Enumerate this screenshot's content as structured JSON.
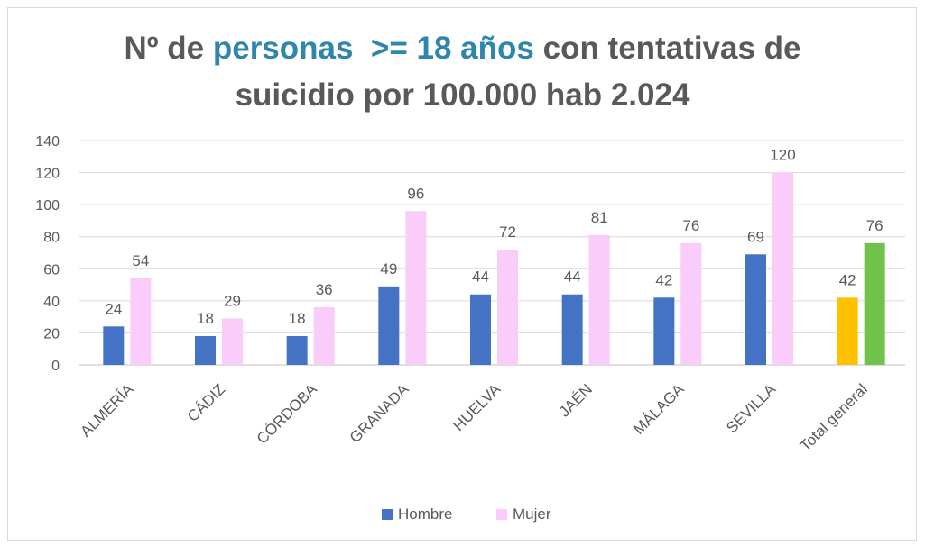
{
  "chart_data": {
    "type": "bar",
    "title": {
      "line1_part1": "Nº de ",
      "line1_highlight1": "personas",
      "line1_part2": "  ",
      "line1_highlight2": ">= 18 años",
      "line1_part3": " con tentativas de",
      "line2": "suicidio por 100.000 hab 2.024"
    },
    "categories": [
      "ALMERÍA",
      "CÁDIZ",
      "CÓRDOBA",
      "GRANADA",
      "HUELVA",
      "JAÉN",
      "MÁLAGA",
      "SEVILLA",
      "Total general"
    ],
    "series": [
      {
        "name": "Hombre",
        "values": [
          24,
          18,
          18,
          49,
          44,
          44,
          42,
          69,
          42
        ]
      },
      {
        "name": "Mujer",
        "values": [
          54,
          29,
          36,
          96,
          72,
          81,
          76,
          120,
          76
        ]
      }
    ],
    "ylim": [
      0,
      140
    ],
    "yticks": [
      0,
      20,
      40,
      60,
      80,
      100,
      120,
      140
    ],
    "grid": true,
    "legend_position": "bottom",
    "colors": {
      "hombre": "#4472C4",
      "mujer": "#F9CCF9",
      "total_hombre": "#FFC000",
      "total_mujer": "#70C34A",
      "title_highlight": "#2E86AB",
      "text": "#595959",
      "grid": "#d9d9d9"
    }
  }
}
